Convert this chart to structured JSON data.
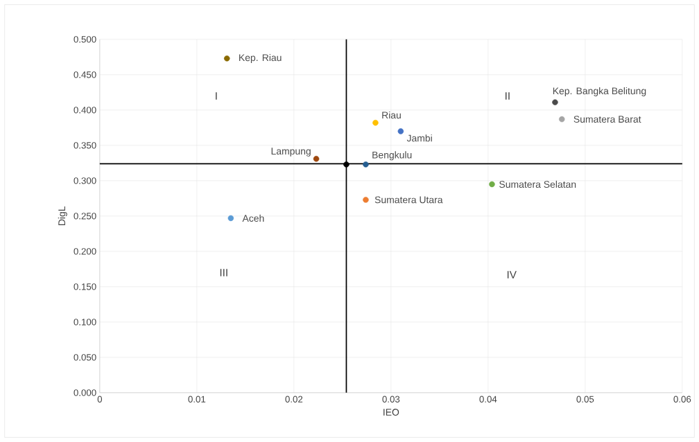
{
  "chart_data": {
    "type": "scatter",
    "xlabel": "IEO",
    "ylabel": "DigL",
    "xlim": [
      0,
      0.06
    ],
    "xticks": [
      0,
      0.01,
      0.02,
      0.03,
      0.04,
      0.05,
      0.06
    ],
    "ylim": [
      0,
      0.5
    ],
    "yticks": [
      {
        "value": 0,
        "label": "0.000"
      },
      {
        "value": 0.05,
        "label": "0.050"
      },
      {
        "value": 0.1,
        "label": "0.100"
      },
      {
        "value": 0.15,
        "label": "0.150"
      },
      {
        "value": 0.2,
        "label": "0.200"
      },
      {
        "value": 0.25,
        "label": "0.250"
      },
      {
        "value": 0.3,
        "label": "0.300"
      },
      {
        "value": 0.35,
        "label": "0.350"
      },
      {
        "value": 0.4,
        "label": "0.400"
      },
      {
        "value": 0.45,
        "label": "0.450"
      },
      {
        "value": 0.5,
        "label": "0.500"
      }
    ],
    "grid": true,
    "series": [
      {
        "name": "Kep. Riau",
        "color": "#8a6a00",
        "x": [
          0.0131
        ],
        "values": [
          0.473
        ]
      },
      {
        "name": "Kep. Bangka Belitung",
        "color": "#4a4a4a",
        "x": [
          0.0469
        ],
        "values": [
          0.411
        ]
      },
      {
        "name": "Sumatera Barat",
        "color": "#a5a5a5",
        "x": [
          0.0476
        ],
        "values": [
          0.387
        ]
      },
      {
        "name": "Riau",
        "color": "#ffc000",
        "x": [
          0.0284
        ],
        "values": [
          0.382
        ]
      },
      {
        "name": "Jambi",
        "color": "#4472c4",
        "x": [
          0.031
        ],
        "values": [
          0.37
        ]
      },
      {
        "name": "Lampung",
        "color": "#9e480e",
        "x": [
          0.0223
        ],
        "values": [
          0.331
        ]
      },
      {
        "name": "Bengkulu",
        "color": "#255e91",
        "x": [
          0.0274
        ],
        "values": [
          0.323
        ]
      },
      {
        "name": "Sumatera Selatan",
        "color": "#70ad47",
        "x": [
          0.0404
        ],
        "values": [
          0.295
        ]
      },
      {
        "name": "Sumatera Utara",
        "color": "#ed7d31",
        "x": [
          0.0274
        ],
        "values": [
          0.273
        ]
      },
      {
        "name": "Aceh",
        "color": "#5b9bd5",
        "x": [
          0.0135
        ],
        "values": [
          0.247
        ]
      },
      {
        "color": "#000000",
        "x": [
          0.0254
        ],
        "values": [
          0.323
        ]
      }
    ],
    "ref_lines": [
      {
        "axis": "x",
        "value": 0.0254,
        "color": "#000000"
      },
      {
        "axis": "y",
        "value": 0.324,
        "color": "#000000"
      }
    ],
    "annotations": [
      "I",
      "II",
      "III",
      "IV"
    ]
  }
}
